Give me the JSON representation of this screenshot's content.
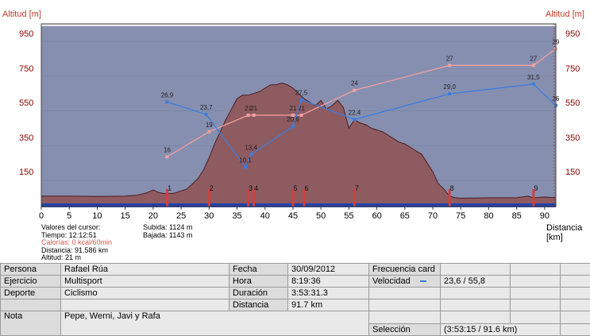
{
  "axes": {
    "y_title_left": "Altitud [m]",
    "y_title_right": "Altitud [m]",
    "y_ticks": [
      "950",
      "750",
      "550",
      "350",
      "150"
    ],
    "x_ticks": [
      "0",
      "5",
      "10",
      "15",
      "20",
      "25",
      "30",
      "35",
      "40",
      "45",
      "50",
      "55",
      "60",
      "65",
      "70",
      "75",
      "80",
      "85",
      "90"
    ],
    "x_title": "Distancia\n[km]",
    "ylim": [
      0,
      1050
    ],
    "xlim": [
      0,
      92
    ]
  },
  "chart_data": {
    "type": "area",
    "altitude_profile": {
      "x": [
        0,
        5,
        10,
        15,
        17,
        19,
        20,
        21,
        22,
        23,
        24,
        25,
        26,
        27,
        28,
        29,
        30,
        31,
        32,
        33,
        34,
        35,
        36,
        37,
        38,
        39,
        40,
        41,
        42,
        43,
        44,
        45,
        46,
        47,
        48,
        49,
        50,
        51,
        52,
        53,
        54,
        55,
        56,
        57,
        58,
        59,
        60,
        61,
        62,
        63,
        64,
        65,
        66,
        67,
        68,
        69,
        70,
        71,
        72,
        73,
        74,
        75,
        80,
        85,
        87,
        88,
        90,
        92
      ],
      "y": [
        60,
        60,
        58,
        60,
        65,
        80,
        95,
        80,
        75,
        75,
        78,
        90,
        100,
        130,
        160,
        210,
        280,
        360,
        430,
        500,
        560,
        620,
        640,
        640,
        650,
        660,
        680,
        700,
        700,
        710,
        700,
        680,
        650,
        620,
        600,
        580,
        610,
        560,
        580,
        610,
        570,
        450,
        500,
        480,
        470,
        450,
        440,
        430,
        410,
        390,
        370,
        360,
        340,
        320,
        300,
        250,
        200,
        130,
        100,
        60,
        50,
        48,
        50,
        50,
        60,
        50,
        55,
        50
      ]
    },
    "speed_series": {
      "name": "Velocidad",
      "color": "#3b7ddd",
      "points": [
        {
          "x": 22.5,
          "v": "26,9"
        },
        {
          "x": 29.5,
          "v": "23,7"
        },
        {
          "x": 36.5,
          "v": "10,1"
        },
        {
          "x": 37.5,
          "v": "13,4"
        },
        {
          "x": 45,
          "v": "20,6"
        },
        {
          "x": 46.5,
          "v": "27,5"
        },
        {
          "x": 56,
          "v": "22,4"
        },
        {
          "x": 73,
          "v": "29,0"
        },
        {
          "x": 88,
          "v": "31,5"
        },
        {
          "x": 92,
          "v": "26"
        }
      ]
    },
    "hr_series": {
      "color": "#f4a0a0",
      "points": [
        {
          "x": 22.5,
          "v": "16"
        },
        {
          "x": 30,
          "v": "19"
        },
        {
          "x": 37,
          "v": "21"
        },
        {
          "x": 38,
          "v": "21"
        },
        {
          "x": 45,
          "v": "21"
        },
        {
          "x": 46.5,
          "v": "21"
        },
        {
          "x": 56,
          "v": "24"
        },
        {
          "x": 73,
          "v": "27"
        },
        {
          "x": 88,
          "v": "27"
        },
        {
          "x": 92,
          "v": "29"
        }
      ]
    },
    "lap_markers": [
      {
        "x": 22.5,
        "label": "1"
      },
      {
        "x": 30,
        "label": "2"
      },
      {
        "x": 37,
        "label": "3"
      },
      {
        "x": 38,
        "label": "4"
      },
      {
        "x": 45,
        "label": "5"
      },
      {
        "x": 47,
        "label": "6"
      },
      {
        "x": 56,
        "label": "7"
      },
      {
        "x": 73,
        "label": "8"
      },
      {
        "x": 88,
        "label": "9"
      }
    ],
    "colors": {
      "plot_bg": "#868fb0",
      "area_fill": "#8e5b60",
      "area_line": "#4a1e22",
      "speed": "#3b7ddd",
      "hr": "#f4a0a0",
      "marker": "#d04040"
    }
  },
  "cursor": {
    "title": "Valores del cursor:",
    "tiempo": "Tiempo: 12:12:51",
    "calorias": "Calorías: 0 kcal/60min",
    "distancia": "Distancia: 91.586 km",
    "altitud": "Altitud: 21 m"
  },
  "climb": {
    "subida": "Subida: 1124 m",
    "bajada": "Bajada: 1143 m"
  },
  "table": {
    "persona_label": "Persona",
    "persona_value": "Rafael Rúa",
    "ejercicio_label": "Ejercicio",
    "ejercicio_value": "Multisport",
    "deporte_label": "Deporte",
    "deporte_value": "Ciclismo",
    "nota_label": "Nota",
    "nota_value": "Pepe, Werni, Javi y Rafa",
    "fecha_label": "Fecha",
    "fecha_value": "30/09/2012",
    "hora_label": "Hora",
    "hora_value": "8:19:36",
    "duracion_label": "Duración",
    "duracion_value": "3:53:31.3",
    "distancia_label": "Distancia",
    "distancia_value": "91.7 km",
    "fc_label": "Frecuencia card",
    "vel_label": "Velocidad",
    "vel_value": "23,6 / 55,8",
    "seleccion_label": "Selección",
    "seleccion_value": "(3:53:15 / 91.6 km)"
  }
}
